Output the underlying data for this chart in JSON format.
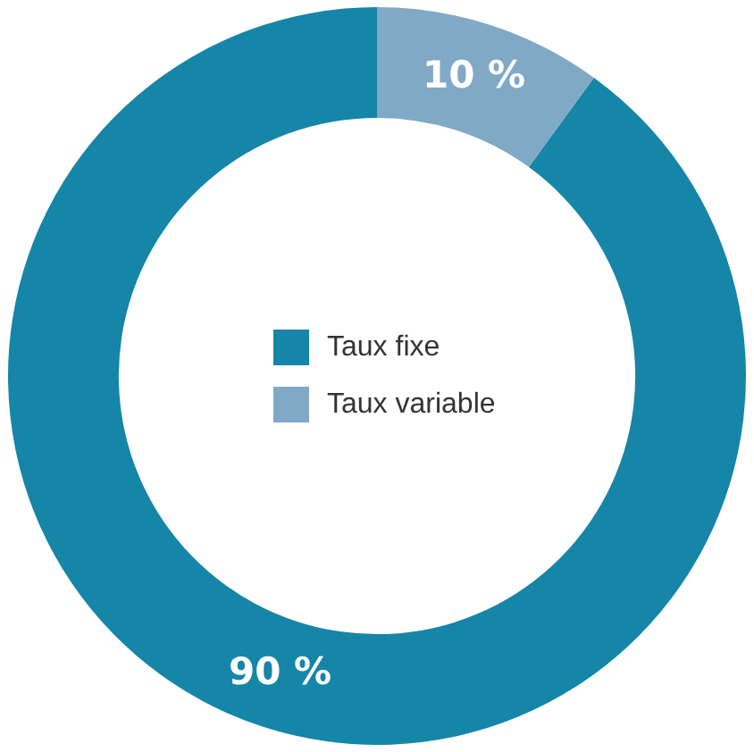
{
  "chart_data": {
    "type": "donut",
    "categories": [
      "Taux fixe",
      "Taux variable"
    ],
    "values": [
      90,
      10
    ],
    "colors": [
      "#1585a8",
      "#80a9c6"
    ],
    "value_labels": [
      "90 %",
      "10 %"
    ],
    "legend": "center"
  }
}
